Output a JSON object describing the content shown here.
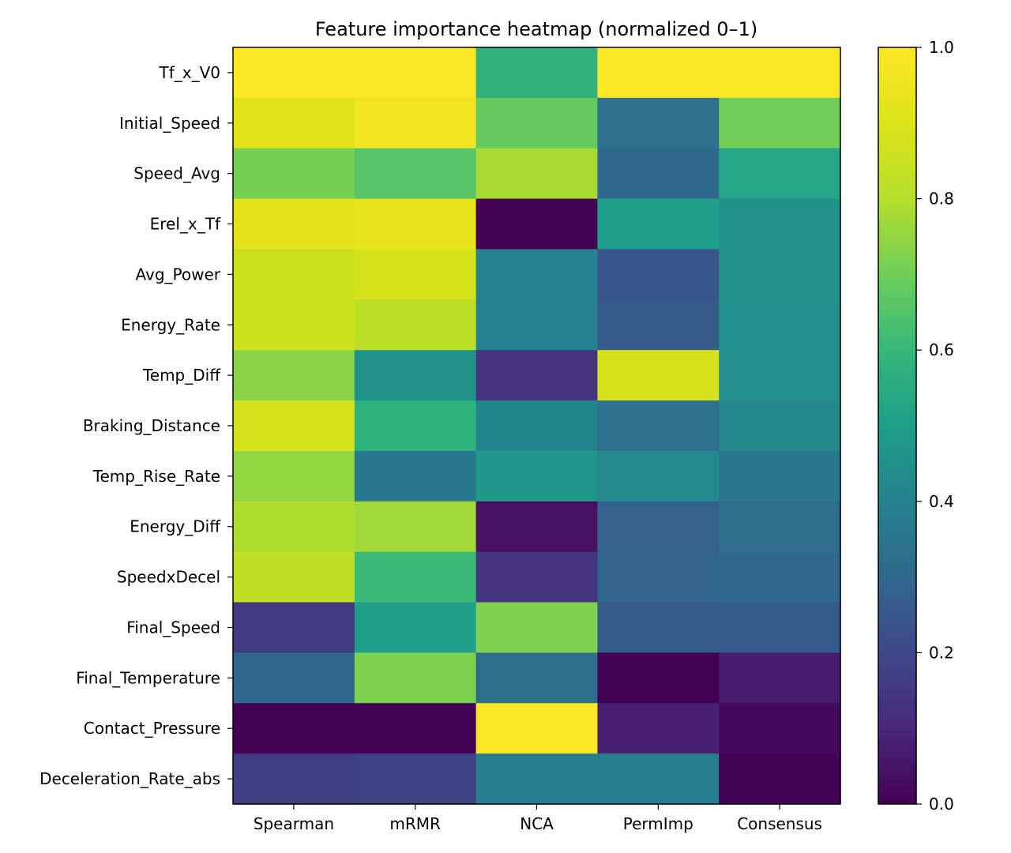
{
  "chart_data": {
    "type": "heatmap",
    "title": "Feature importance heatmap (normalized 0–1)",
    "xlabel": "",
    "ylabel": "",
    "x_categories": [
      "Spearman",
      "mRMR",
      "NCA",
      "PermImp",
      "Consensus"
    ],
    "y_categories": [
      "Tf_x_V0",
      "Initial_Speed",
      "Speed_Avg",
      "Erel_x_Tf",
      "Avg_Power",
      "Energy_Rate",
      "Temp_Diff",
      "Braking_Distance",
      "Temp_Rise_Rate",
      "Energy_Diff",
      "SpeedxDecel",
      "Final_Speed",
      "Final_Temperature",
      "Contact_Pressure",
      "Deceleration_Rate_abs"
    ],
    "values": [
      [
        1.0,
        1.0,
        0.58,
        1.0,
        1.0
      ],
      [
        0.91,
        0.96,
        0.68,
        0.33,
        0.7
      ],
      [
        0.71,
        0.66,
        0.78,
        0.3,
        0.53
      ],
      [
        0.92,
        0.93,
        0.0,
        0.5,
        0.46
      ],
      [
        0.86,
        0.88,
        0.4,
        0.24,
        0.46
      ],
      [
        0.86,
        0.82,
        0.4,
        0.26,
        0.45
      ],
      [
        0.74,
        0.46,
        0.14,
        0.88,
        0.45
      ],
      [
        0.88,
        0.57,
        0.41,
        0.33,
        0.42
      ],
      [
        0.75,
        0.36,
        0.47,
        0.43,
        0.36
      ],
      [
        0.79,
        0.77,
        0.04,
        0.28,
        0.32
      ],
      [
        0.83,
        0.61,
        0.14,
        0.29,
        0.3
      ],
      [
        0.15,
        0.5,
        0.72,
        0.26,
        0.26
      ],
      [
        0.3,
        0.72,
        0.32,
        0.0,
        0.07
      ],
      [
        0.0,
        0.0,
        1.0,
        0.08,
        0.02
      ],
      [
        0.16,
        0.18,
        0.39,
        0.39,
        0.0
      ]
    ],
    "colormap": "viridis",
    "vmin": 0,
    "vmax": 1,
    "colorbar_ticks": [
      "0.0",
      "0.2",
      "0.4",
      "0.6",
      "0.8",
      "1.0"
    ],
    "colorbar_tick_values": [
      0,
      0.2,
      0.4,
      0.6,
      0.8,
      1.0
    ],
    "grid": false
  }
}
